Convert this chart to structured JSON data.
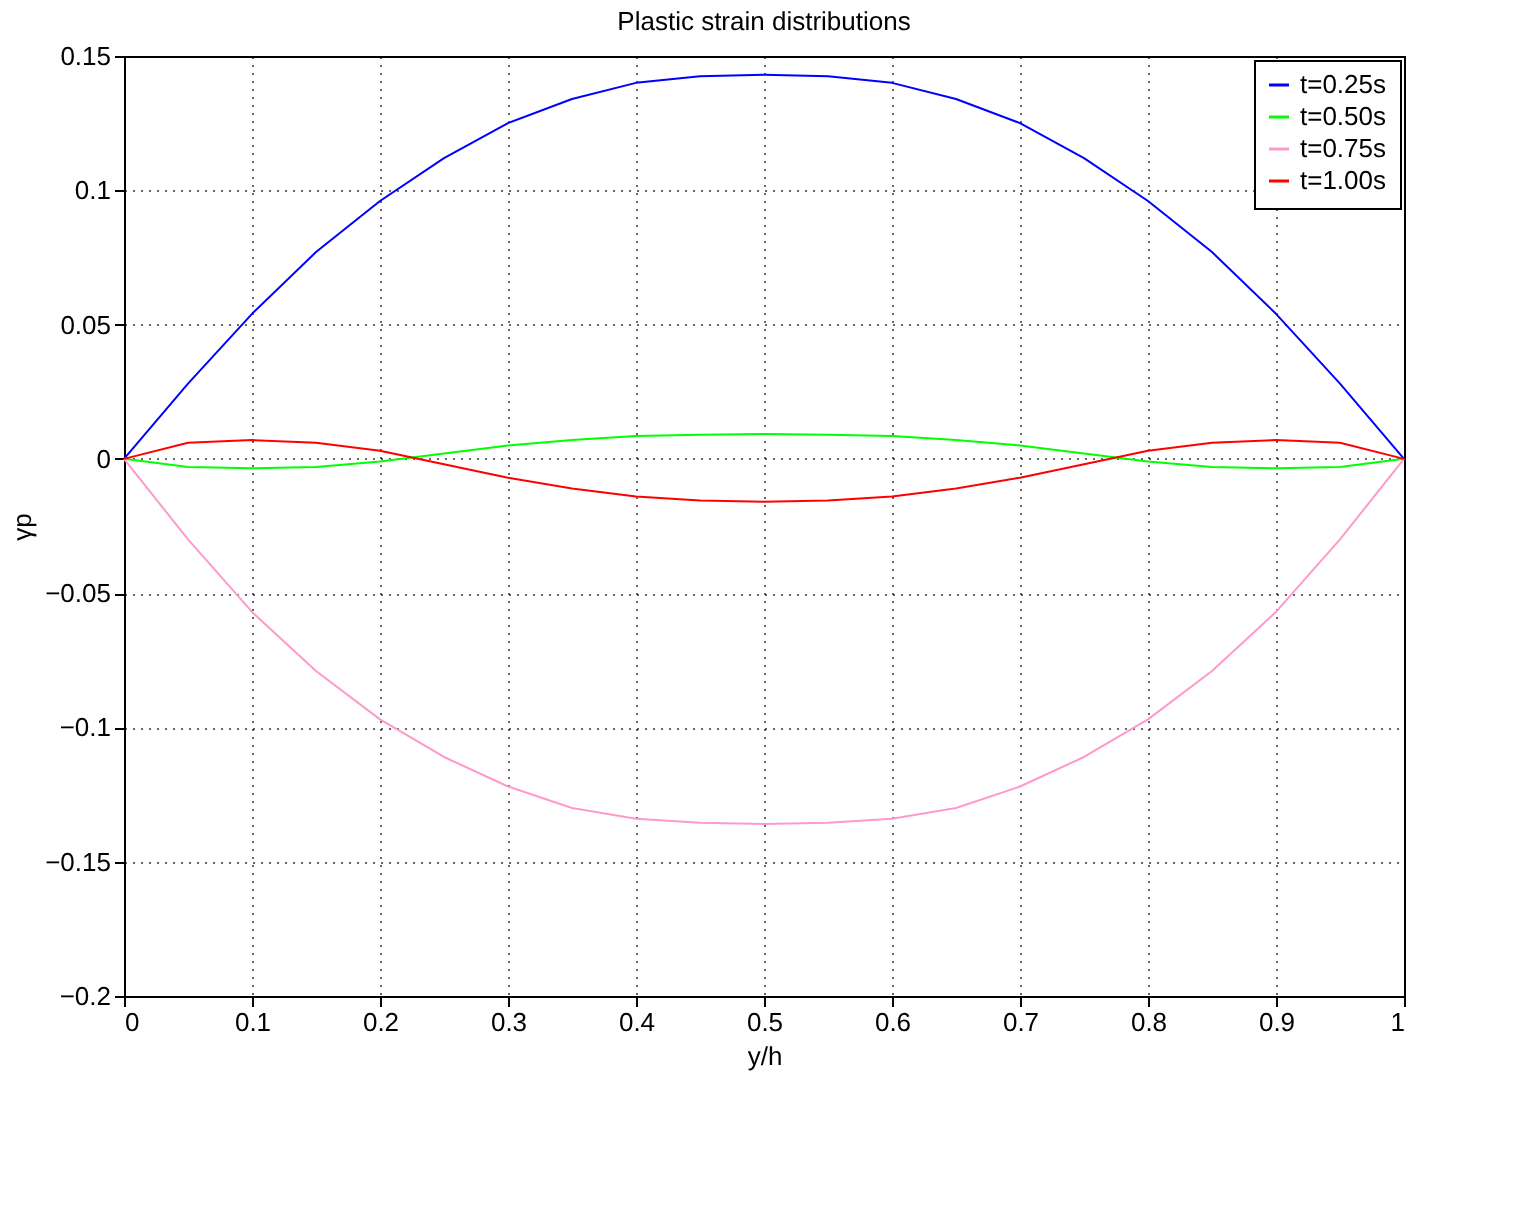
{
  "chart_data": {
    "type": "line",
    "title": "Plastic strain distributions",
    "xlabel": "y/h",
    "ylabel": "γp",
    "x": [
      0,
      0.05,
      0.1,
      0.15,
      0.2,
      0.25,
      0.3,
      0.35,
      0.4,
      0.45,
      0.5,
      0.55,
      0.6,
      0.65,
      0.7,
      0.75,
      0.8,
      0.85,
      0.9,
      0.95,
      1
    ],
    "series": [
      {
        "name": "t=0.25s",
        "color": "#0000ff",
        "values": [
          0,
          0.028,
          0.054,
          0.077,
          0.096,
          0.112,
          0.125,
          0.134,
          0.14,
          0.1425,
          0.143,
          0.1425,
          0.14,
          0.134,
          0.125,
          0.112,
          0.096,
          0.077,
          0.054,
          0.028,
          0
        ]
      },
      {
        "name": "t=0.50s",
        "color": "#00ff00",
        "values": [
          0,
          -0.003,
          -0.0035,
          -0.003,
          -0.001,
          0.002,
          0.005,
          0.007,
          0.0085,
          0.009,
          0.0093,
          0.009,
          0.0085,
          0.007,
          0.005,
          0.002,
          -0.001,
          -0.003,
          -0.0035,
          -0.003,
          0
        ]
      },
      {
        "name": "t=0.75s",
        "color": "#ff99cc",
        "values": [
          0,
          -0.03,
          -0.057,
          -0.079,
          -0.097,
          -0.111,
          -0.122,
          -0.13,
          -0.134,
          -0.1355,
          -0.136,
          -0.1355,
          -0.134,
          -0.13,
          -0.122,
          -0.111,
          -0.097,
          -0.079,
          -0.057,
          -0.03,
          0
        ]
      },
      {
        "name": "t=1.00s",
        "color": "#ff0000",
        "values": [
          0,
          0.006,
          0.007,
          0.006,
          0.003,
          -0.002,
          -0.007,
          -0.011,
          -0.014,
          -0.0155,
          -0.016,
          -0.0155,
          -0.014,
          -0.011,
          -0.007,
          -0.002,
          0.003,
          0.006,
          0.007,
          0.006,
          0
        ]
      }
    ],
    "xlim": [
      0,
      1
    ],
    "xticks": [
      0,
      0.1,
      0.2,
      0.3,
      0.4,
      0.5,
      0.6,
      0.7,
      0.8,
      0.9,
      1
    ],
    "ylim": [
      -0.2,
      0.15
    ],
    "yticks": [
      -0.2,
      -0.15,
      -0.1,
      -0.05,
      0,
      0.05,
      0.1,
      0.15
    ],
    "grid": true,
    "legend": "top right",
    "marker": "none",
    "line_style": "solid"
  }
}
